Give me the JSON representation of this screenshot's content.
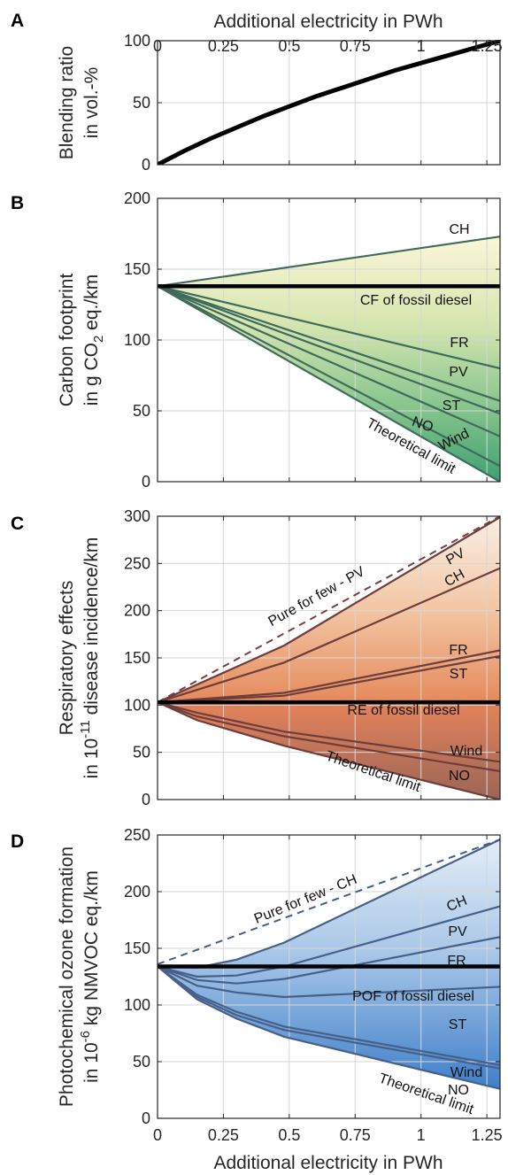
{
  "chart_data": [
    {
      "panel": "A",
      "type": "line",
      "xlabel": "Additional electricity in PWh",
      "ylabel": [
        "Blending ratio",
        "in vol.-%"
      ],
      "xlim": [
        0,
        1.3
      ],
      "ylim": [
        0,
        100
      ],
      "xticks": [
        0,
        0.25,
        0.5,
        0.75,
        1,
        1.25
      ],
      "xticklabels": [
        "0",
        "0.25",
        "0.5",
        "0.75",
        "1",
        "1.25"
      ],
      "yticks": [
        0,
        50,
        100
      ],
      "yticklabels": [
        "0",
        "50",
        "100"
      ],
      "grid": true,
      "series": [
        {
          "x": [
            0,
            0.1,
            0.2,
            0.3,
            0.4,
            0.5,
            0.6,
            0.7,
            0.8,
            0.9,
            1.0,
            1.1,
            1.2,
            1.3
          ],
          "y": [
            0,
            11,
            21,
            30,
            39,
            47,
            55,
            62,
            69,
            76,
            82,
            88,
            94,
            100
          ],
          "color": "#000000"
        }
      ]
    },
    {
      "panel": "B",
      "type": "line",
      "ylabel": [
        "Carbon footprint",
        "in g CO2 eq./km"
      ],
      "ylabel_sub": "2",
      "xlim": [
        0,
        1.3
      ],
      "ylim": [
        0,
        200
      ],
      "xticks": [
        0,
        0.25,
        0.5,
        0.75,
        1,
        1.25
      ],
      "yticks": [
        0,
        50,
        100,
        150,
        200
      ],
      "yticklabels": [
        "0",
        "50",
        "100",
        "150",
        "200"
      ],
      "grid": true,
      "gradient": [
        "#fbf5d4",
        "#4aa879"
      ],
      "baseline": {
        "value": 138,
        "label": "CF of fossil diesel"
      },
      "series": [
        {
          "name": "CH",
          "x": [
            0,
            1.3
          ],
          "y": [
            138,
            173
          ]
        },
        {
          "name": "FR",
          "x": [
            0,
            1.3
          ],
          "y": [
            138,
            80
          ]
        },
        {
          "name": "PV",
          "x": [
            0,
            1.3
          ],
          "y": [
            138,
            57
          ]
        },
        {
          "name": "ST",
          "x": [
            0,
            1.3
          ],
          "y": [
            138,
            48
          ]
        },
        {
          "name": "NO",
          "x": [
            0,
            1.3
          ],
          "y": [
            138,
            32
          ]
        },
        {
          "name": "Wind",
          "x": [
            0,
            1.3
          ],
          "y": [
            138,
            11
          ]
        },
        {
          "name": "Theoretical limit",
          "x": [
            0,
            1.3
          ],
          "y": [
            138,
            0
          ]
        }
      ],
      "labels": [
        "CH",
        "FR",
        "PV",
        "ST",
        "NO",
        "Wind",
        "Theoretical limit"
      ]
    },
    {
      "panel": "C",
      "type": "line",
      "ylabel": [
        "Respiratory effects",
        "in 10-11 disease incidence/km"
      ],
      "ylabel_sup": "-11",
      "xlim": [
        0,
        1.3
      ],
      "ylim": [
        0,
        300
      ],
      "xticks": [
        0,
        0.25,
        0.5,
        0.75,
        1,
        1.25
      ],
      "yticks": [
        0,
        50,
        100,
        150,
        200,
        250,
        300
      ],
      "yticklabels": [
        "0",
        "50",
        "100",
        "150",
        "200",
        "250",
        "300"
      ],
      "grid": true,
      "gradient": [
        "#f8e6d9",
        "#e0895a"
      ],
      "lower_fill": [
        "#e88f65",
        "#9e5e52"
      ],
      "baseline": {
        "value": 103,
        "label": "RE of fossil diesel"
      },
      "dashed": {
        "name": "Pure for few - PV",
        "x": [
          0,
          1.3
        ],
        "y": [
          103,
          300
        ]
      },
      "series": [
        {
          "name": "PV",
          "x": [
            0,
            0.48,
            1.3
          ],
          "y": [
            103,
            163,
            299
          ]
        },
        {
          "name": "CH",
          "x": [
            0,
            0.48,
            1.3
          ],
          "y": [
            103,
            145,
            245
          ]
        },
        {
          "name": "FR",
          "x": [
            0,
            0.48,
            1.3
          ],
          "y": [
            103,
            113,
            158
          ]
        },
        {
          "name": "ST",
          "x": [
            0,
            0.48,
            1.3
          ],
          "y": [
            103,
            110,
            152
          ]
        },
        {
          "name": "Wind",
          "x": [
            0,
            0.15,
            0.48,
            1.3
          ],
          "y": [
            103,
            92,
            72,
            40
          ]
        },
        {
          "name": "NO",
          "x": [
            0,
            0.15,
            0.48,
            1.3
          ],
          "y": [
            103,
            88,
            67,
            30
          ]
        },
        {
          "name": "Theoretical limit",
          "x": [
            0,
            0.15,
            0.48,
            1.3
          ],
          "y": [
            103,
            84,
            57,
            0
          ]
        }
      ],
      "labels": [
        "Pure for few - PV",
        "PV",
        "CH",
        "FR",
        "ST",
        "RE of fossil diesel",
        "Wind",
        "NO",
        "Theoretical limit"
      ]
    },
    {
      "panel": "D",
      "type": "line",
      "xlabel": "Additional electricity in PWh",
      "ylabel": [
        "Photochemical ozone formation",
        "in 10-6 kg NMVOC eq./km"
      ],
      "ylabel_sup": "-6",
      "xlim": [
        0,
        1.3
      ],
      "ylim": [
        0,
        250
      ],
      "xticks": [
        0,
        0.25,
        0.5,
        0.75,
        1,
        1.25
      ],
      "xticklabels": [
        "0",
        "0.25",
        "0.5",
        "0.75",
        "1",
        "1.25"
      ],
      "yticks": [
        0,
        50,
        100,
        150,
        200,
        250
      ],
      "yticklabels": [
        "0",
        "50",
        "100",
        "150",
        "200",
        "250"
      ],
      "grid": true,
      "gradient": [
        "#dfe9f5",
        "#4f8ad0"
      ],
      "baseline": {
        "value": 134,
        "label": "POF of fossil diesel"
      },
      "dashed": {
        "name": "Pure for few - CH",
        "x": [
          0,
          1.3
        ],
        "y": [
          136,
          246
        ]
      },
      "series": [
        {
          "name": "CH",
          "x": [
            0,
            0.15,
            0.3,
            0.48,
            1.3
          ],
          "y": [
            134,
            133,
            140,
            155,
            246
          ]
        },
        {
          "name": "PV",
          "x": [
            0,
            0.15,
            0.3,
            0.48,
            1.3
          ],
          "y": [
            134,
            125,
            126,
            134,
            187
          ]
        },
        {
          "name": "FR",
          "x": [
            0,
            0.15,
            0.3,
            0.48,
            1.3
          ],
          "y": [
            134,
            122,
            119,
            123,
            160
          ]
        },
        {
          "name": "ST",
          "x": [
            0,
            0.15,
            0.3,
            0.48,
            1.3
          ],
          "y": [
            134,
            117,
            111,
            107,
            116
          ]
        },
        {
          "name": "Wind",
          "x": [
            0,
            0.15,
            0.3,
            0.48,
            1.3
          ],
          "y": [
            134,
            109,
            94,
            81,
            47
          ]
        },
        {
          "name": "NO",
          "x": [
            0,
            0.15,
            0.3,
            0.48,
            1.3
          ],
          "y": [
            134,
            107,
            91,
            78,
            44
          ]
        },
        {
          "name": "Theoretical limit",
          "x": [
            0,
            0.15,
            0.3,
            0.48,
            1.3
          ],
          "y": [
            134,
            105,
            88,
            72,
            26
          ]
        }
      ],
      "labels": [
        "Pure for few - CH",
        "CH",
        "PV",
        "FR",
        "POF of fossil diesel",
        "ST",
        "Wind",
        "NO",
        "Theoretical limit"
      ]
    }
  ],
  "colors": {
    "frame": "#262626",
    "grid": "#d6d6d6",
    "baseline": "#000000",
    "B_line": "#3f6b5c",
    "C_line": "#6e3d3c",
    "C_dash": "#7a3e3e",
    "D_line": "#46608a",
    "D_dash": "#3f5f8a"
  }
}
